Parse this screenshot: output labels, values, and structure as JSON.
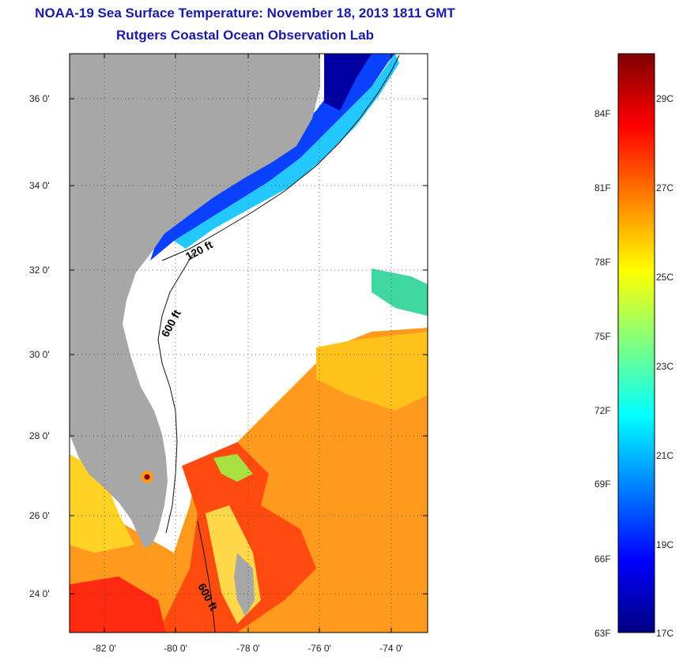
{
  "title": {
    "line1": "NOAA-19 Sea Surface Temperature:  November 18, 2013 1811 GMT",
    "line2": "Rutgers Coastal Ocean Observation Lab"
  },
  "map": {
    "lat_ticks": [
      "36 0'",
      "34 0'",
      "32 0'",
      "30 0'",
      "28 0'",
      "26 0'",
      "24 0'"
    ],
    "lon_ticks": [
      "-82 0'",
      "-80 0'",
      "-78 0'",
      "-76 0'",
      "-74 0'"
    ],
    "contour_labels": [
      "120 ft",
      "600 ft",
      "600 ft"
    ],
    "land_color": "#a7a7a7",
    "cloud_color": "#ffffff"
  },
  "colorbar": {
    "fahrenheit_labels": [
      "84F",
      "81F",
      "78F",
      "75F",
      "72F",
      "69F",
      "66F",
      "63F"
    ],
    "celsius_labels": [
      "29C",
      "27C",
      "25C",
      "23C",
      "21C",
      "19C",
      "17C"
    ],
    "colors": [
      "#000080",
      "#0000ff",
      "#0080ff",
      "#00ffff",
      "#80ff80",
      "#ffff00",
      "#ff8000",
      "#ff0000",
      "#800000"
    ]
  }
}
